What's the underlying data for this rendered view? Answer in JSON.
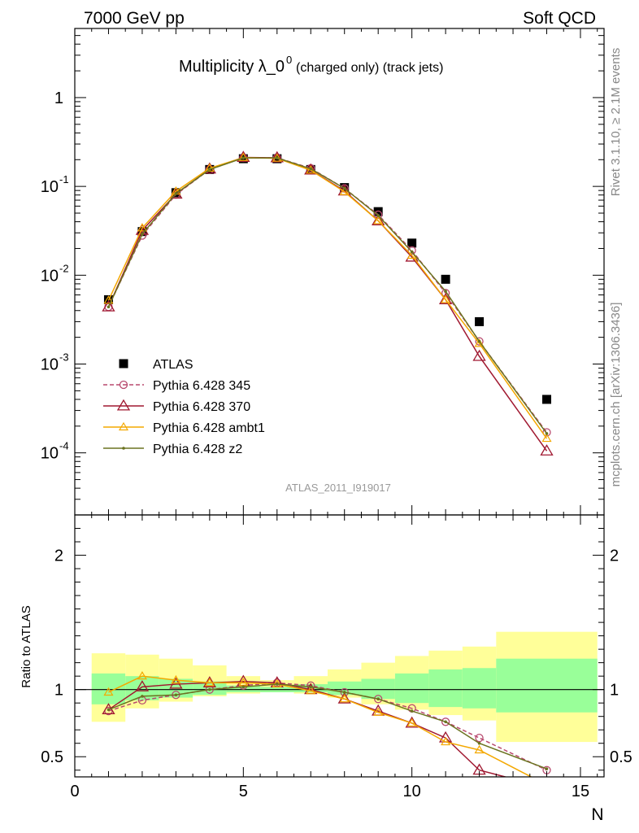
{
  "header": {
    "left": "7000 GeV pp",
    "right": "Soft QCD"
  },
  "side_labels": {
    "rivet": "Rivet 3.1.10, ≥ 2.1M events",
    "mcplots": "mcplots.cern.ch [arXiv:1306.3436]"
  },
  "chart_data": [
    {
      "type": "line",
      "panel": "main",
      "title": "Multiplicity λ_0",
      "title_superscript": "0",
      "title_suffix": "(charged only) (track jets)",
      "analysis_label": "ATLAS_2011_I919017",
      "yscale": "log",
      "xlim": [
        0,
        15.7
      ],
      "ylim": [
        2e-05,
        6
      ],
      "y_tick_labels": [
        "10^-4",
        "10^-3",
        "10^-2",
        "10^-1",
        "1"
      ],
      "legend_position": "bottom-left",
      "x": [
        1,
        2,
        3,
        4,
        5,
        6,
        7,
        8,
        9,
        10,
        11,
        12,
        14
      ],
      "series": [
        {
          "name": "ATLAS",
          "style": "data",
          "color": "#000000",
          "values": [
            0.0053,
            0.031,
            0.085,
            0.155,
            0.205,
            0.205,
            0.155,
            0.097,
            0.052,
            0.023,
            0.009,
            0.003,
            0.0004
          ]
        },
        {
          "name": "Pythia 6.428 345",
          "style": "dashed-circle",
          "color": "#b8496e",
          "values": [
            0.0044,
            0.028,
            0.081,
            0.155,
            0.21,
            0.21,
            0.16,
            0.095,
            0.048,
            0.019,
            0.0063,
            0.0018,
            0.00017
          ]
        },
        {
          "name": "Pythia 6.428 370",
          "style": "solid-triangle",
          "color": "#a01830",
          "values": [
            0.0044,
            0.032,
            0.082,
            0.157,
            0.212,
            0.21,
            0.153,
            0.089,
            0.041,
            0.016,
            0.0053,
            0.00122,
            0.000105
          ]
        },
        {
          "name": "Pythia 6.428 ambt1",
          "style": "solid-triangle-small",
          "color": "#f4a800",
          "values": [
            0.0052,
            0.034,
            0.088,
            0.16,
            0.211,
            0.207,
            0.152,
            0.087,
            0.041,
            0.0167,
            0.0053,
            0.0017,
            0.000145
          ]
        },
        {
          "name": "Pythia 6.428 z2",
          "style": "solid-dot",
          "color": "#6b7320",
          "values": [
            0.0044,
            0.029,
            0.083,
            0.155,
            0.209,
            0.209,
            0.158,
            0.095,
            0.047,
            0.0183,
            0.0066,
            0.0018,
            0.000165
          ]
        }
      ]
    },
    {
      "type": "line",
      "panel": "ratio",
      "ylabel": "Ratio to ATLAS",
      "xlabel": "N",
      "xlim": [
        0,
        15.7
      ],
      "ylim": [
        0.35,
        2.3
      ],
      "x_tick_labels": [
        "0",
        "5",
        "10",
        "15"
      ],
      "y_tick_labels": [
        "0.5",
        "1",
        "2"
      ],
      "reference": 1,
      "bands": {
        "x_edges": [
          0.5,
          1.5,
          2.5,
          3.5,
          4.5,
          5.5,
          6.5,
          7.5,
          8.5,
          9.5,
          10.5,
          11.5,
          12.5,
          15.5
        ],
        "inner_low": [
          0.89,
          0.92,
          0.94,
          0.96,
          0.98,
          0.98,
          0.98,
          0.96,
          0.93,
          0.9,
          0.87,
          0.86,
          0.83
        ],
        "inner_high": [
          1.12,
          1.1,
          1.08,
          1.06,
          1.03,
          1.02,
          1.04,
          1.06,
          1.08,
          1.12,
          1.15,
          1.16,
          1.23
        ],
        "outer_low": [
          0.76,
          0.86,
          0.91,
          0.95,
          0.97,
          0.98,
          0.97,
          0.94,
          0.89,
          0.85,
          0.81,
          0.77,
          0.61
        ],
        "outer_high": [
          1.27,
          1.26,
          1.23,
          1.18,
          1.1,
          1.07,
          1.1,
          1.15,
          1.2,
          1.25,
          1.29,
          1.32,
          1.43
        ],
        "inner_color": "#99ff99",
        "outer_color": "#ffff99"
      },
      "x": [
        1,
        2,
        3,
        4,
        5,
        6,
        7,
        8,
        9,
        10,
        11,
        12,
        14
      ],
      "series": [
        {
          "name": "Pythia 6.428 345",
          "style": "dashed-circle",
          "color": "#b8496e",
          "values": [
            0.84,
            0.92,
            0.96,
            1.0,
            1.03,
            1.05,
            1.03,
            0.98,
            0.93,
            0.86,
            0.76,
            0.64,
            0.4
          ]
        },
        {
          "name": "Pythia 6.428 370",
          "style": "solid-triangle",
          "color": "#a01830",
          "values": [
            0.85,
            1.02,
            1.04,
            1.05,
            1.06,
            1.05,
            1.0,
            0.93,
            0.84,
            0.75,
            0.64,
            0.4,
            0.27
          ]
        },
        {
          "name": "Pythia 6.428 ambt1",
          "style": "solid-triangle-small",
          "color": "#f4a800",
          "values": [
            0.98,
            1.1,
            1.07,
            1.05,
            1.05,
            1.04,
            0.99,
            0.93,
            0.83,
            0.75,
            0.61,
            0.55,
            0.29
          ]
        },
        {
          "name": "Pythia 6.428 z2",
          "style": "solid-dot",
          "color": "#6b7320",
          "values": [
            0.85,
            0.95,
            0.96,
            1.0,
            1.02,
            1.04,
            1.02,
            0.98,
            0.93,
            0.84,
            0.76,
            0.6,
            0.41
          ]
        }
      ]
    }
  ]
}
